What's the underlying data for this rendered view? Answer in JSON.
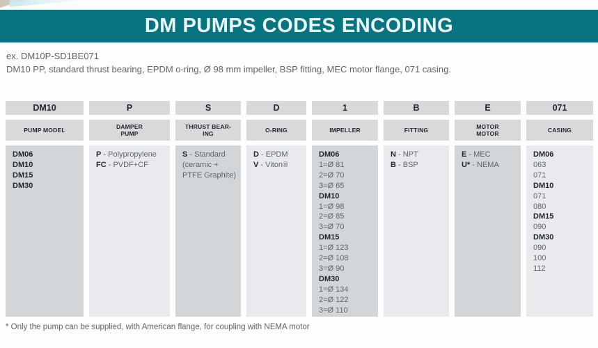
{
  "header": {
    "title": "DM PUMPS CODES ENCODING"
  },
  "example": {
    "code_line": "ex. DM10P-SD1BE071",
    "description": "DM10 PP, standard thrust bearing, EPDM o-ring, Ø 98 mm impeller, BSP fitting, MEC motor flange, 071 casing."
  },
  "footnote": "* Only the pump can be supplied, with American flange, for coupling with NEMA motor",
  "colors": {
    "accent_teal": "#087480",
    "header_cell_bg": "#d7d9db",
    "body_cell_dark_bg": "#d3d6d9",
    "body_cell_light_bg": "#e8eaed"
  },
  "table": {
    "columns": [
      {
        "code": "DM10",
        "label_lines": [
          "PUMP MODEL"
        ],
        "entries": [
          {
            "h": "DM06"
          },
          {
            "h": "DM10"
          },
          {
            "h": "DM15"
          },
          {
            "h": "DM30"
          }
        ]
      },
      {
        "code": "P",
        "label_lines": [
          "DAMPER",
          "PUMP"
        ],
        "entries": [
          {
            "b": "P",
            "t": "- Polypropylene"
          },
          {
            "b": "FC",
            "t": "- PVDF+CF"
          }
        ]
      },
      {
        "code": "S",
        "label_lines": [
          "THRUST BEAR-",
          "ING"
        ],
        "entries": [
          {
            "b": "S",
            "t": "- Standard"
          },
          {
            "t": "(ceramic +"
          },
          {
            "t": "PTFE Graphite)"
          }
        ]
      },
      {
        "code": "D",
        "label_lines": [
          "O-RING"
        ],
        "entries": [
          {
            "b": "D",
            "t": "- EPDM"
          },
          {
            "b": "V",
            "t": "- Viton®"
          }
        ]
      },
      {
        "code": "1",
        "label_lines": [
          "IMPELLER"
        ],
        "entries": [
          {
            "h": "DM06"
          },
          {
            "t": "1=Ø 81"
          },
          {
            "t": "2=Ø 70"
          },
          {
            "t": "3=Ø 65"
          },
          {
            "h": "DM10"
          },
          {
            "t": "1=Ø 98"
          },
          {
            "t": "2=Ø 85"
          },
          {
            "t": "3=Ø 70"
          },
          {
            "h": "DM15"
          },
          {
            "t": "1=Ø 123"
          },
          {
            "t": "2=Ø 108"
          },
          {
            "t": "3=Ø 90"
          },
          {
            "h": "DM30"
          },
          {
            "t": "1=Ø 134"
          },
          {
            "t": "2=Ø 122"
          },
          {
            "t": "3=Ø 110"
          }
        ]
      },
      {
        "code": "B",
        "label_lines": [
          "FITTING"
        ],
        "entries": [
          {
            "b": "N",
            "t": "- NPT"
          },
          {
            "b": "B",
            "t": "- BSP"
          }
        ]
      },
      {
        "code": "E",
        "label_lines": [
          "MOTOR",
          "MOTOR"
        ],
        "entries": [
          {
            "b": "E",
            "t": "- MEC"
          },
          {
            "b": "U*",
            "t": "- NEMA"
          }
        ]
      },
      {
        "code": "071",
        "label_lines": [
          "CASING"
        ],
        "entries": [
          {
            "h": "DM06"
          },
          {
            "t": "063"
          },
          {
            "t": "071"
          },
          {
            "h": "DM10"
          },
          {
            "t": "071"
          },
          {
            "t": "080"
          },
          {
            "h": "DM15"
          },
          {
            "t": "090"
          },
          {
            "h": "DM30"
          },
          {
            "t": "090"
          },
          {
            "t": "100"
          },
          {
            "t": "112"
          }
        ]
      }
    ]
  }
}
